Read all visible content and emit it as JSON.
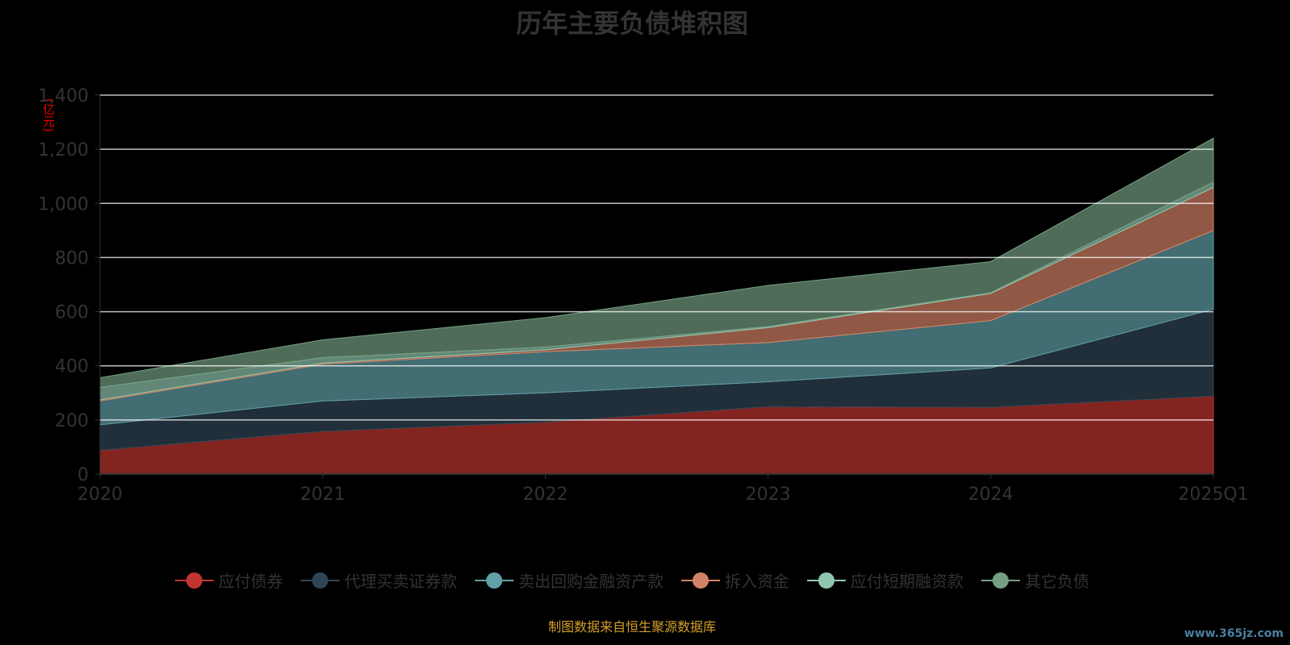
{
  "chart_data": {
    "type": "area",
    "stacked": true,
    "title": "历年主要负债堆积图",
    "ylabel": "(亿元)",
    "ylim": [
      0,
      1400
    ],
    "yticks": [
      0,
      200,
      400,
      600,
      800,
      1000,
      1200,
      1400
    ],
    "ytick_labels": [
      "0",
      "200",
      "400",
      "600",
      "800",
      "1,000",
      "1,200",
      "1,400"
    ],
    "categories": [
      "2020",
      "2021",
      "2022",
      "2023",
      "2024",
      "2025Q1"
    ],
    "series": [
      {
        "name": "应付债券",
        "color": "#c23531",
        "values": [
          88,
          158,
          192,
          249,
          247,
          288
        ]
      },
      {
        "name": "代理买卖证券款",
        "color": "#2f4554",
        "values": [
          94,
          112,
          108,
          92,
          145,
          321
        ]
      },
      {
        "name": "卖出回购金融资产款",
        "color": "#61a0a8",
        "values": [
          88,
          136,
          152,
          145,
          175,
          291
        ]
      },
      {
        "name": "拆入资金",
        "color": "#d48265",
        "values": [
          4,
          4,
          7,
          55,
          100,
          159
        ]
      },
      {
        "name": "应付短期融资款",
        "color": "#91c7ae",
        "values": [
          46,
          20,
          10,
          4,
          3,
          20
        ]
      },
      {
        "name": "其它负债",
        "color": "#749f83",
        "values": [
          36,
          66,
          109,
          152,
          115,
          162
        ]
      }
    ],
    "legend_position": "bottom",
    "grid": true
  },
  "source": "制图数据来自恒生聚源数据库",
  "watermark": "www.365jz.com"
}
